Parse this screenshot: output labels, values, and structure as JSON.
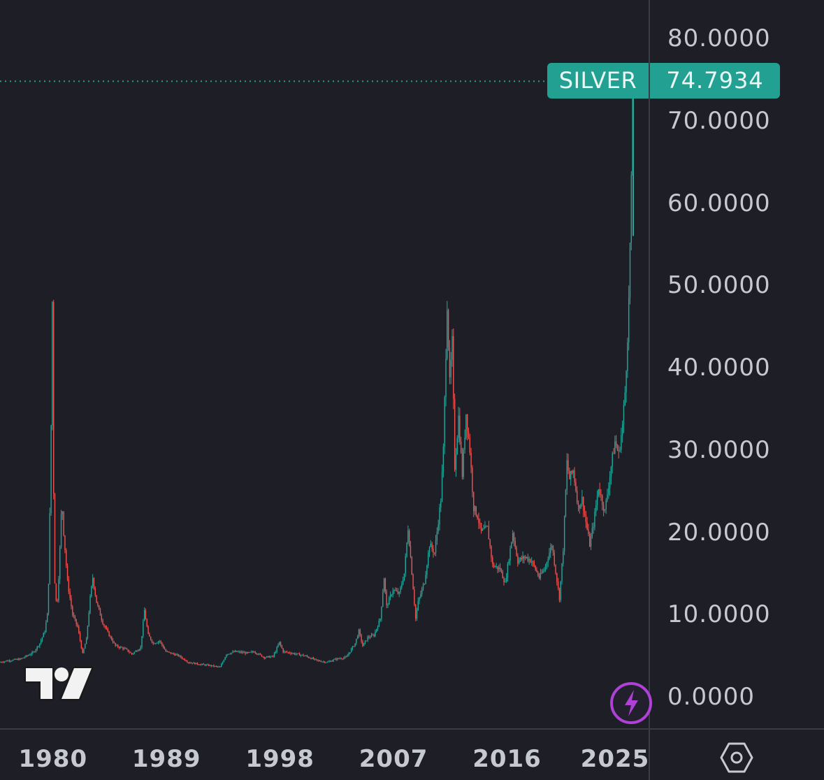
{
  "symbol": "SILVER",
  "last_price": "74.7934",
  "colors": {
    "background": "#1d1e26",
    "up": "#26a69a",
    "down": "#ef5350",
    "price_line": "#22a091",
    "bolt": "#b041d6",
    "axis_text": "#c7c9d1"
  },
  "icons": {
    "logo": "tradingview-logo-icon",
    "bolt": "lightning-bolt-icon",
    "settings": "hexagon-settings-icon"
  },
  "chart_data": {
    "type": "candlestick",
    "title": "",
    "xlabel": "",
    "ylabel": "",
    "ylim": [
      0,
      80
    ],
    "xlim": [
      1975.8,
      2026.0
    ],
    "y_ticks": [
      "80.0000",
      "70.0000",
      "60.0000",
      "50.0000",
      "40.0000",
      "30.0000",
      "20.0000",
      "10.0000",
      "0.0000"
    ],
    "x_ticks": [
      "1980",
      "1989",
      "1998",
      "2007",
      "2016",
      "2025"
    ],
    "grid": false,
    "last_price": 74.7934,
    "series": [
      {
        "points": [
          [
            1975.8,
            4.2
          ],
          [
            1976.5,
            4.4
          ],
          [
            1977.5,
            4.6
          ],
          [
            1978.5,
            5.4
          ],
          [
            1979.0,
            6.5
          ],
          [
            1979.4,
            8.0
          ],
          [
            1979.6,
            10.0
          ],
          [
            1979.75,
            16.0
          ],
          [
            1979.85,
            28.0
          ],
          [
            1979.95,
            38.0
          ],
          [
            1980.0,
            48.0
          ],
          [
            1980.05,
            39.0
          ],
          [
            1980.1,
            25.0
          ],
          [
            1980.2,
            14.0
          ],
          [
            1980.35,
            10.5
          ],
          [
            1980.55,
            16.0
          ],
          [
            1980.75,
            24.0
          ],
          [
            1980.9,
            20.0
          ],
          [
            1981.2,
            14.0
          ],
          [
            1981.6,
            10.0
          ],
          [
            1982.0,
            8.5
          ],
          [
            1982.4,
            5.2
          ],
          [
            1982.7,
            7.0
          ],
          [
            1983.0,
            12.0
          ],
          [
            1983.2,
            14.5
          ],
          [
            1983.5,
            11.5
          ],
          [
            1984.0,
            9.0
          ],
          [
            1984.5,
            7.5
          ],
          [
            1985.0,
            6.2
          ],
          [
            1985.8,
            5.8
          ],
          [
            1986.3,
            5.2
          ],
          [
            1987.0,
            6.0
          ],
          [
            1987.3,
            10.5
          ],
          [
            1987.6,
            7.5
          ],
          [
            1988.0,
            6.5
          ],
          [
            1988.5,
            6.8
          ],
          [
            1989.0,
            5.5
          ],
          [
            1990.0,
            5.0
          ],
          [
            1990.8,
            4.2
          ],
          [
            1991.5,
            4.0
          ],
          [
            1992.5,
            3.8
          ],
          [
            1993.3,
            3.6
          ],
          [
            1993.8,
            5.2
          ],
          [
            1994.5,
            5.5
          ],
          [
            1995.5,
            5.3
          ],
          [
            1996.0,
            5.5
          ],
          [
            1996.8,
            4.8
          ],
          [
            1997.5,
            4.9
          ],
          [
            1998.0,
            6.6
          ],
          [
            1998.3,
            5.5
          ],
          [
            1999.0,
            5.3
          ],
          [
            2000.0,
            5.0
          ],
          [
            2001.0,
            4.4
          ],
          [
            2001.8,
            4.2
          ],
          [
            2002.5,
            4.6
          ],
          [
            2003.3,
            4.8
          ],
          [
            2004.0,
            6.5
          ],
          [
            2004.3,
            8.0
          ],
          [
            2004.6,
            6.2
          ],
          [
            2005.0,
            7.2
          ],
          [
            2005.5,
            7.5
          ],
          [
            2006.0,
            9.5
          ],
          [
            2006.3,
            14.5
          ],
          [
            2006.5,
            11.0
          ],
          [
            2007.0,
            13.0
          ],
          [
            2007.5,
            12.5
          ],
          [
            2007.9,
            15.0
          ],
          [
            2008.2,
            20.5
          ],
          [
            2008.4,
            17.0
          ],
          [
            2008.8,
            9.5
          ],
          [
            2009.0,
            11.5
          ],
          [
            2009.5,
            14.0
          ],
          [
            2009.9,
            18.5
          ],
          [
            2010.3,
            17.5
          ],
          [
            2010.8,
            24.0
          ],
          [
            2011.0,
            30.0
          ],
          [
            2011.3,
            48.0
          ],
          [
            2011.5,
            38.0
          ],
          [
            2011.7,
            43.0
          ],
          [
            2011.9,
            28.0
          ],
          [
            2012.2,
            34.0
          ],
          [
            2012.5,
            27.0
          ],
          [
            2012.8,
            34.5
          ],
          [
            2013.1,
            30.0
          ],
          [
            2013.4,
            23.0
          ],
          [
            2013.7,
            22.0
          ],
          [
            2014.0,
            20.0
          ],
          [
            2014.5,
            20.5
          ],
          [
            2014.9,
            16.0
          ],
          [
            2015.5,
            15.5
          ],
          [
            2015.9,
            13.8
          ],
          [
            2016.5,
            20.0
          ],
          [
            2016.9,
            16.5
          ],
          [
            2017.5,
            17.0
          ],
          [
            2018.0,
            16.5
          ],
          [
            2018.6,
            14.5
          ],
          [
            2019.0,
            15.5
          ],
          [
            2019.6,
            18.5
          ],
          [
            2020.2,
            12.0
          ],
          [
            2020.5,
            18.0
          ],
          [
            2020.8,
            28.5
          ],
          [
            2021.0,
            26.5
          ],
          [
            2021.3,
            27.5
          ],
          [
            2021.7,
            23.0
          ],
          [
            2022.0,
            24.0
          ],
          [
            2022.6,
            18.5
          ],
          [
            2022.9,
            21.0
          ],
          [
            2023.3,
            25.5
          ],
          [
            2023.8,
            22.5
          ],
          [
            2024.3,
            28.0
          ],
          [
            2024.6,
            31.0
          ],
          [
            2024.9,
            29.5
          ],
          [
            2025.2,
            33.0
          ],
          [
            2025.4,
            37.0
          ],
          [
            2025.55,
            42.0
          ],
          [
            2025.7,
            48.0
          ],
          [
            2025.8,
            55.0
          ],
          [
            2025.9,
            62.0
          ],
          [
            2025.95,
            74.79
          ]
        ]
      }
    ]
  }
}
